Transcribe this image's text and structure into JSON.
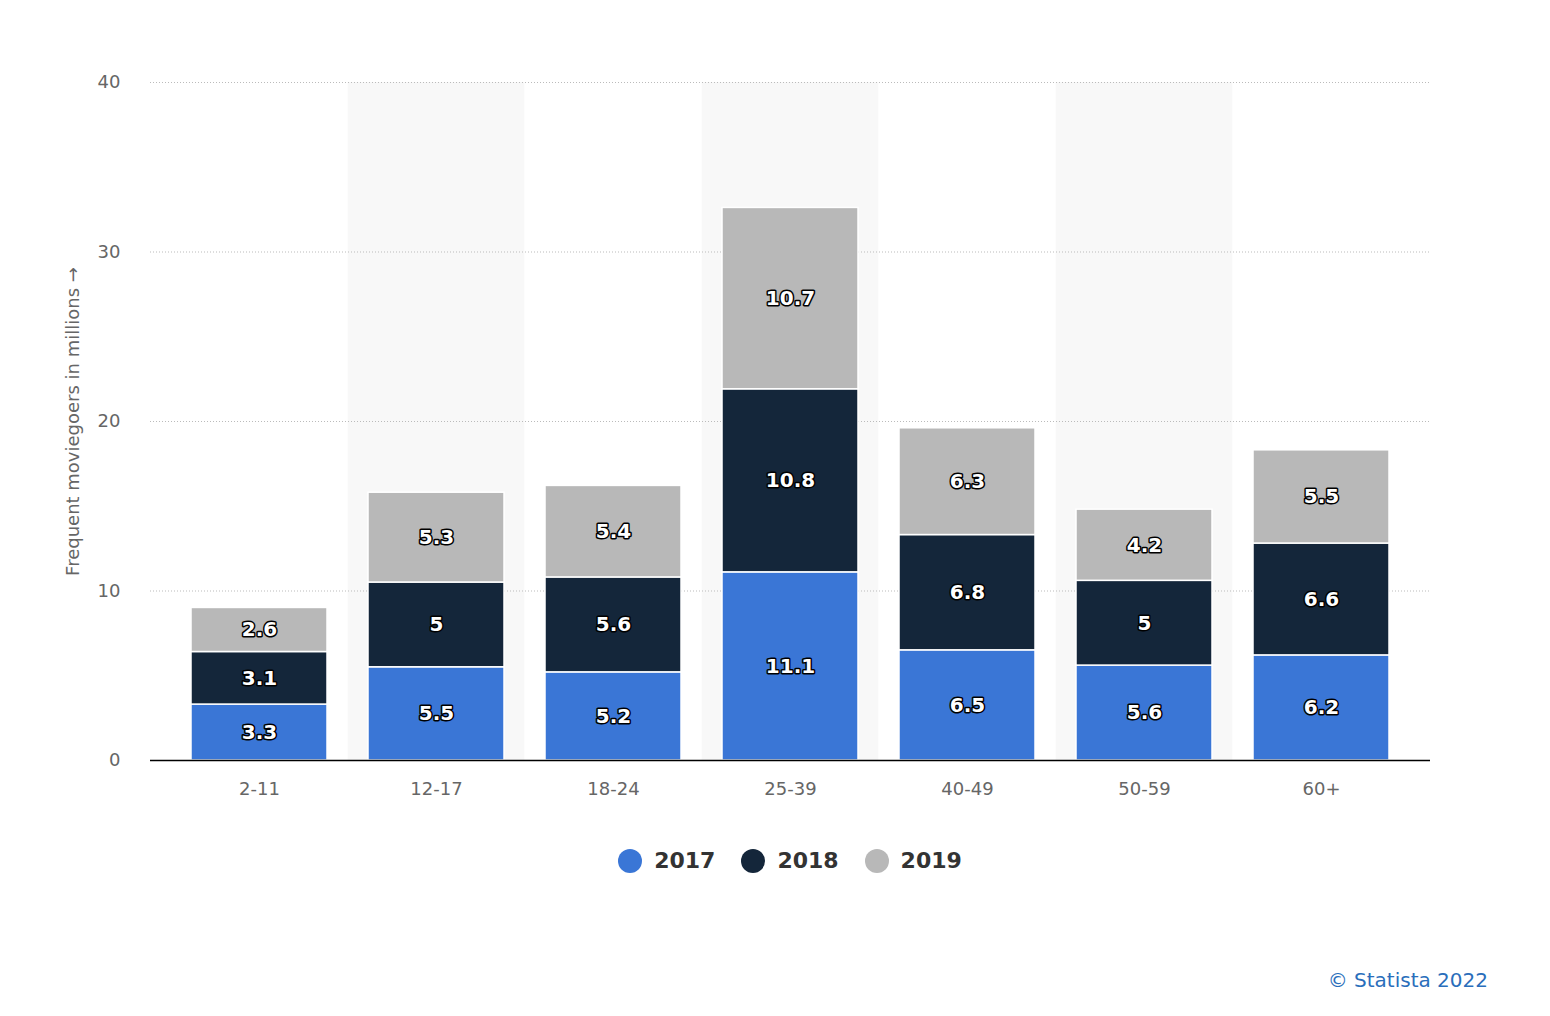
{
  "chart_data": {
    "type": "bar",
    "y_label": "Frequent moviegoers in millions",
    "caption": "© Statista 2022",
    "categories": [
      "2-11",
      "12-17",
      "18-24",
      "25-39",
      "40-49",
      "50-59",
      "60+"
    ],
    "series": [
      {
        "name": "2017",
        "color": "#3a76d6",
        "values": [
          3.3,
          5.5,
          5.2,
          11.1,
          6.5,
          5.6,
          6.2
        ]
      },
      {
        "name": "2018",
        "color": "#14263a",
        "values": [
          3.1,
          5,
          5.6,
          10.8,
          6.8,
          5,
          6.6
        ]
      },
      {
        "name": "2019",
        "color": "#b8b8b8",
        "values": [
          2.6,
          5.3,
          5.4,
          10.7,
          6.3,
          4.2,
          5.5
        ]
      }
    ],
    "ylim": [
      0,
      40
    ],
    "yticks": [
      0,
      10,
      20,
      30,
      40
    ],
    "grid": true,
    "stacked": true,
    "data_labels": true,
    "legend": "bottom"
  }
}
